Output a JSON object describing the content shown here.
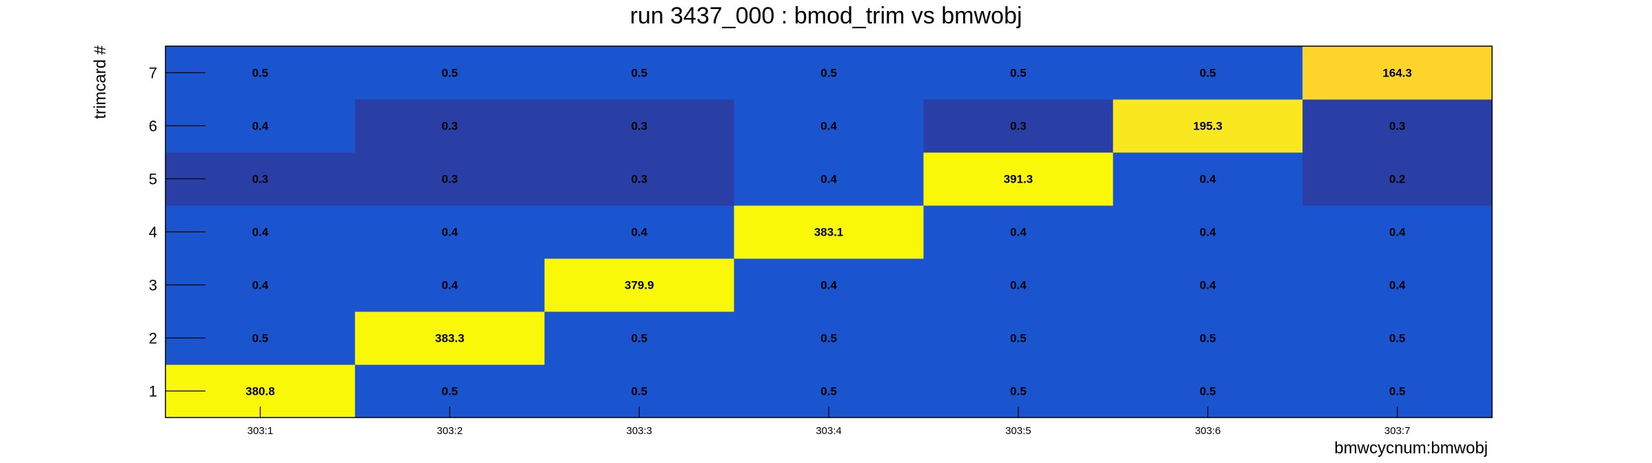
{
  "chart_data": {
    "type": "heatmap",
    "title": "run 3437_000 : bmod_trim vs bmwobj",
    "xlabel": "bmwcycnum:bmwobj",
    "ylabel": "trimcard #",
    "x_categories": [
      "303:1",
      "303:2",
      "303:3",
      "303:4",
      "303:5",
      "303:6",
      "303:7"
    ],
    "y_categories": [
      "1",
      "2",
      "3",
      "4",
      "5",
      "6",
      "7"
    ],
    "values": [
      [
        380.8,
        0.5,
        0.5,
        0.5,
        0.5,
        0.5,
        0.5
      ],
      [
        0.5,
        383.3,
        0.5,
        0.5,
        0.5,
        0.5,
        0.5
      ],
      [
        0.4,
        0.4,
        379.9,
        0.4,
        0.4,
        0.4,
        0.4
      ],
      [
        0.4,
        0.4,
        0.4,
        383.1,
        0.4,
        0.4,
        0.4
      ],
      [
        0.3,
        0.3,
        0.3,
        0.4,
        391.3,
        0.4,
        0.2
      ],
      [
        0.4,
        0.3,
        0.3,
        0.4,
        0.3,
        195.3,
        0.3
      ],
      [
        0.5,
        0.5,
        0.5,
        0.5,
        0.5,
        0.5,
        164.3
      ]
    ],
    "colors": {
      "low_dark": "#2a3fa6",
      "low": "#1a55cf",
      "mid_high": "#fdd52a",
      "high": "#f9e81f",
      "peak": "#f9f808"
    }
  }
}
